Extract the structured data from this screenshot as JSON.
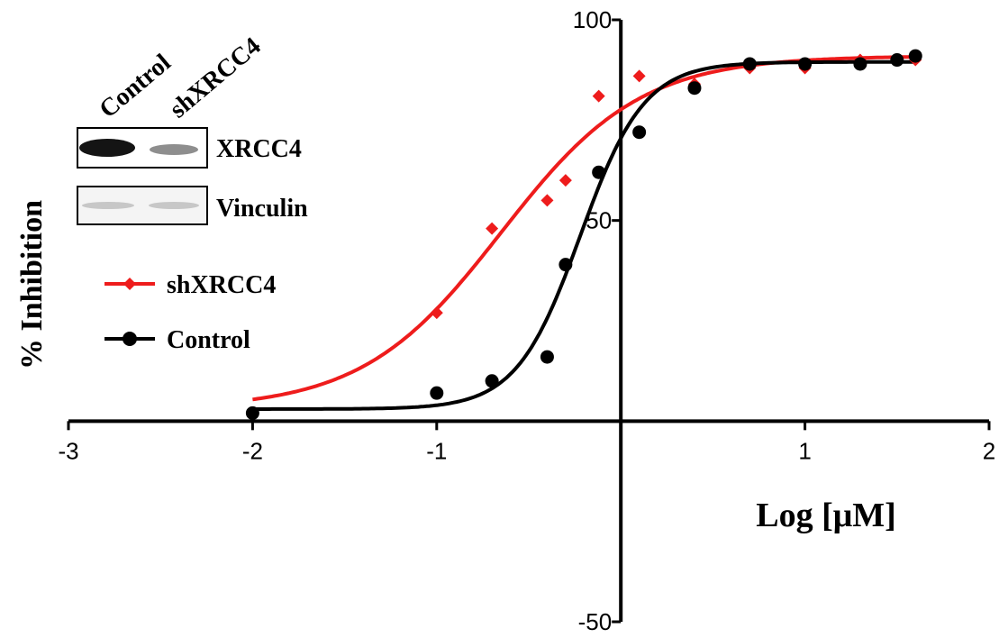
{
  "chart_data": {
    "type": "scatter",
    "xlabel": "Log [μM]",
    "ylabel": "% Inhibition",
    "xlim": [
      -3,
      2
    ],
    "ylim": [
      -50,
      100
    ],
    "x_ticks": [
      -3,
      -2,
      -1,
      1,
      2
    ],
    "x_tick_labels": [
      "-3",
      "-2",
      "-1",
      "1",
      "2"
    ],
    "y_ticks": [
      100,
      50,
      -50
    ],
    "y_tick_labels": [
      "100",
      "50",
      "-50"
    ],
    "grid": false,
    "legend_position": "left",
    "series": [
      {
        "name": "shXRCC4",
        "color": "#ee1c1c",
        "marker": "diamond",
        "x": [
          -2,
          -1,
          -0.7,
          -0.4,
          -0.3,
          -0.12,
          0.1,
          0.4,
          0.7,
          1.0,
          1.3,
          1.5,
          1.6
        ],
        "y": [
          2,
          27,
          48,
          55,
          60,
          81,
          86,
          84,
          88,
          88,
          90,
          90,
          90
        ],
        "fit": {
          "bottom": 3,
          "top": 91,
          "logEC50": -0.65,
          "hill": 1.15
        }
      },
      {
        "name": "Control",
        "color": "#000000",
        "marker": "circle",
        "x": [
          -2,
          -1,
          -0.7,
          -0.4,
          -0.3,
          -0.12,
          0.1,
          0.4,
          0.7,
          1.0,
          1.3,
          1.5,
          1.6
        ],
        "y": [
          2,
          7,
          10,
          16,
          39,
          62,
          72,
          83,
          89,
          89,
          89,
          90,
          91
        ],
        "fit": {
          "bottom": 3,
          "top": 89.5,
          "logEC50": -0.22,
          "hill": 2.5
        }
      }
    ]
  },
  "blot": {
    "lane_labels": [
      "Control",
      "shXRCC4"
    ],
    "bands": [
      "XRCC4",
      "Vinculin"
    ]
  }
}
